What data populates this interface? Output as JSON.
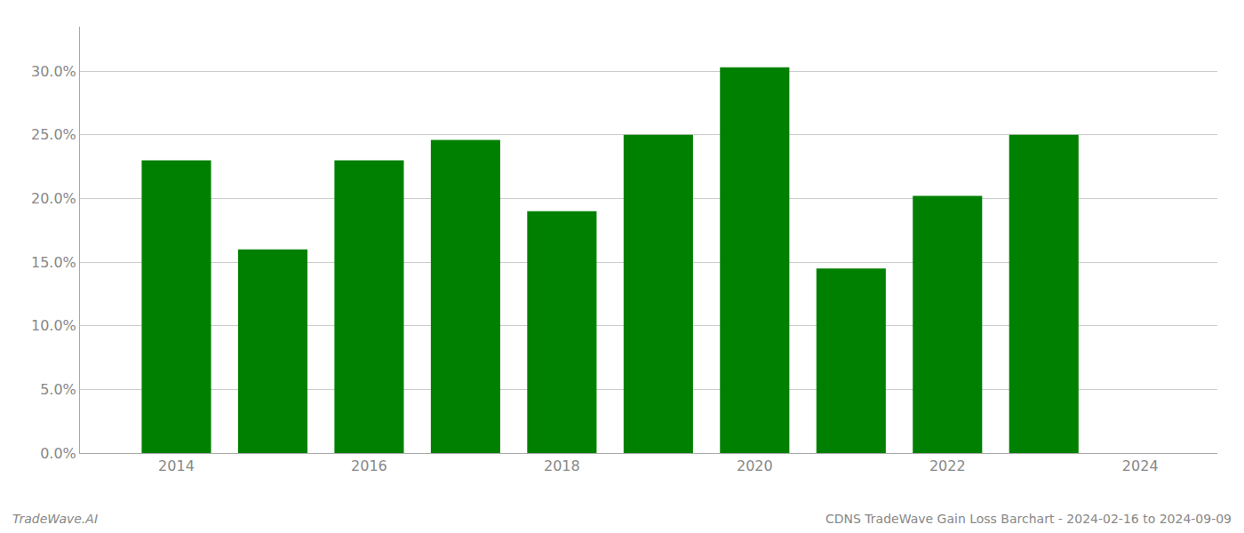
{
  "chart_data": {
    "type": "bar",
    "x": [
      2014,
      2015,
      2016,
      2017,
      2018,
      2019,
      2020,
      2021,
      2022,
      2023
    ],
    "values": [
      0.23,
      0.16,
      0.23,
      0.246,
      0.19,
      0.25,
      0.303,
      0.145,
      0.202,
      0.25
    ],
    "color": "#008000",
    "xlim": [
      2013.0,
      2024.8
    ],
    "xticks": [
      2014,
      2016,
      2018,
      2020,
      2022,
      2024
    ],
    "ylim": [
      0.0,
      0.335
    ],
    "yticks": [
      {
        "value": 0.0,
        "label": "0.0%"
      },
      {
        "value": 0.05,
        "label": "5.0%"
      },
      {
        "value": 0.1,
        "label": "10.0%"
      },
      {
        "value": 0.15,
        "label": "15.0%"
      },
      {
        "value": 0.2,
        "label": "20.0%"
      },
      {
        "value": 0.25,
        "label": "25.0%"
      },
      {
        "value": 0.3,
        "label": "30.0%"
      }
    ],
    "grid": true,
    "annotations": [
      "TradeWave.AI",
      "CDNS TradeWave Gain Loss Barchart - 2024-02-16 to 2024-09-09"
    ]
  }
}
